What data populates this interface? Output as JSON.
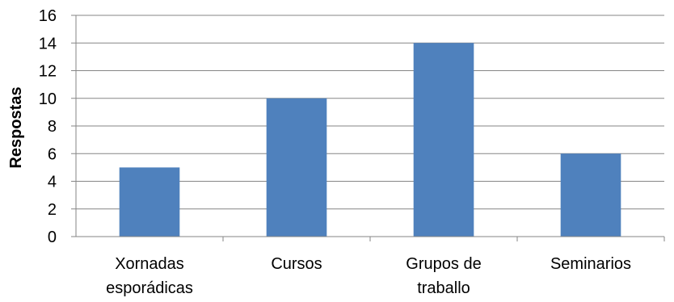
{
  "chart_data": {
    "type": "bar",
    "categories": [
      [
        "Xornadas",
        "esporádicas"
      ],
      [
        "Cursos"
      ],
      [
        "Grupos de",
        "traballo"
      ],
      [
        "Seminarios"
      ]
    ],
    "values": [
      5,
      10,
      14,
      6
    ],
    "ylabel": "Respostas",
    "ylim": [
      0,
      16
    ],
    "yticks": [
      "0",
      "2",
      "4",
      "6",
      "8",
      "10",
      "12",
      "14",
      "16"
    ],
    "grid": true,
    "legend": "none",
    "colors": {
      "bar": "#4f81bd",
      "grid": "#868686",
      "axis": "#868686"
    }
  }
}
